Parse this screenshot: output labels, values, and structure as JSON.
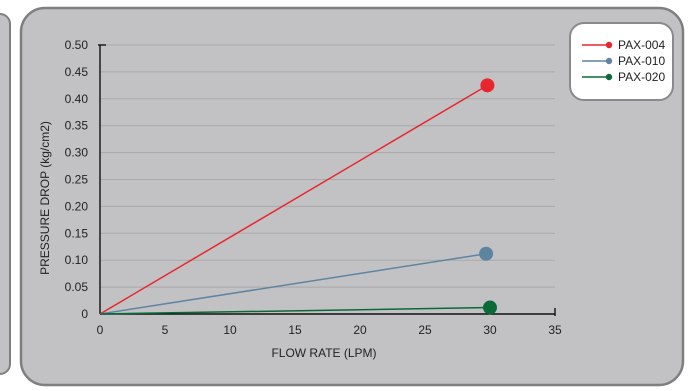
{
  "colors": {
    "panel_bg": "#c2c2c4",
    "panel_border": "#7f7f80",
    "legend_bg": "#ffffff",
    "axis": "#111111",
    "grid": "#a9a9ac"
  },
  "chart_data": {
    "type": "line",
    "title": "",
    "xlabel": "FLOW RATE (LPM)",
    "ylabel": "PRESSURE DROP (kg/cm2)",
    "xlim": [
      0,
      35
    ],
    "ylim": [
      0,
      0.5
    ],
    "x_ticks": [
      0,
      5,
      10,
      15,
      20,
      25,
      30,
      35
    ],
    "y_ticks": [
      0,
      0.05,
      0.1,
      0.15,
      0.2,
      0.25,
      0.3,
      0.35,
      0.4,
      0.45,
      0.5
    ],
    "x_tick_labels": [
      "0",
      "5",
      "10",
      "15",
      "20",
      "25",
      "30",
      "35"
    ],
    "y_tick_labels": [
      "0",
      "0.05",
      "0.10",
      "0.15",
      "0.20",
      "0.25",
      "0.30",
      "0.35",
      "0.40",
      "0.45",
      "0.50"
    ],
    "grid": "horizontal",
    "legend_position": "top-right",
    "series": [
      {
        "name": "PAX-004",
        "color": "#e8262d",
        "x": [
          0,
          29.8
        ],
        "y": [
          0,
          0.425
        ]
      },
      {
        "name": "PAX-010",
        "color": "#5f84a2",
        "x": [
          0,
          29.7
        ],
        "y": [
          0,
          0.112
        ]
      },
      {
        "name": "PAX-020",
        "color": "#0a6a38",
        "x": [
          0,
          30.0
        ],
        "y": [
          0,
          0.012
        ]
      }
    ]
  }
}
